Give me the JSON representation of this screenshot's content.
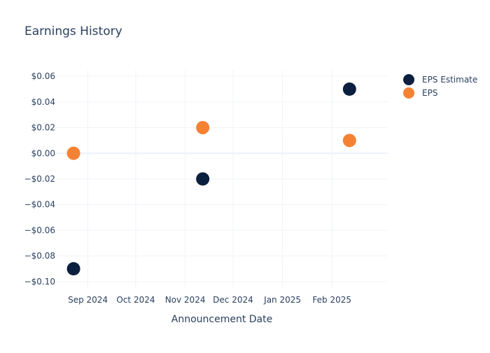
{
  "chart_data": {
    "type": "scatter",
    "title": "Earnings History",
    "xlabel": "Announcement Date",
    "ylabel": "",
    "ylim": [
      -0.105,
      0.065
    ],
    "xlim": [
      "2024-08-12",
      "2025-03-08"
    ],
    "x_ticks": [
      {
        "date": "2024-09-01",
        "label": "Sep 2024"
      },
      {
        "date": "2024-10-01",
        "label": "Oct 2024"
      },
      {
        "date": "2024-11-01",
        "label": "Nov 2024"
      },
      {
        "date": "2024-12-01",
        "label": "Dec 2024"
      },
      {
        "date": "2025-01-01",
        "label": "Jan 2025"
      },
      {
        "date": "2025-02-01",
        "label": "Feb 2025"
      }
    ],
    "y_ticks": [
      {
        "value": 0.06,
        "label": "$0.06"
      },
      {
        "value": 0.04,
        "label": "$0.04"
      },
      {
        "value": 0.02,
        "label": "$0.02"
      },
      {
        "value": 0.0,
        "label": "$0.00"
      },
      {
        "value": -0.02,
        "label": "−$0.02"
      },
      {
        "value": -0.04,
        "label": "−$0.04"
      },
      {
        "value": -0.06,
        "label": "−$0.06"
      },
      {
        "value": -0.08,
        "label": "−$0.08"
      },
      {
        "value": -0.1,
        "label": "−$0.10"
      }
    ],
    "grid": true,
    "legend_position": "top-right",
    "series": [
      {
        "name": "EPS Estimate",
        "color": "#0b1f3f",
        "points": [
          {
            "x": "2024-08-23",
            "y": -0.09
          },
          {
            "x": "2024-11-12",
            "y": -0.02
          },
          {
            "x": "2025-02-12",
            "y": 0.05
          }
        ]
      },
      {
        "name": "EPS",
        "color": "#f58233",
        "points": [
          {
            "x": "2024-08-23",
            "y": 0.0
          },
          {
            "x": "2024-11-12",
            "y": 0.02
          },
          {
            "x": "2025-02-12",
            "y": 0.01
          }
        ]
      }
    ]
  }
}
